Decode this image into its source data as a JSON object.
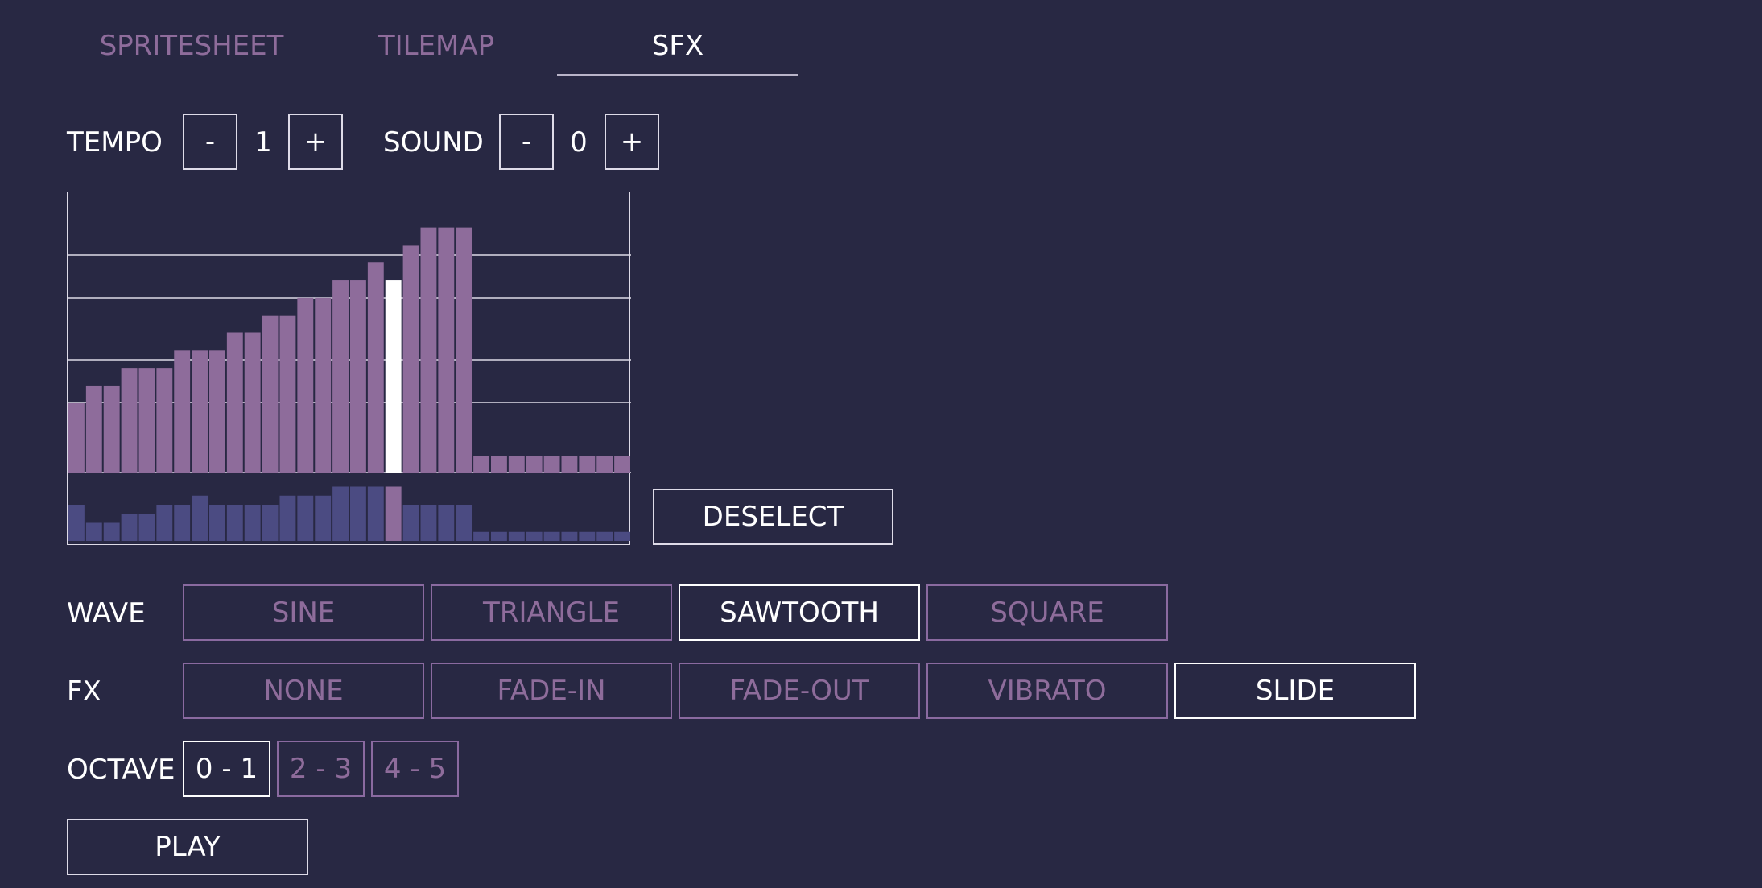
{
  "tabs": [
    {
      "label": "SPRITESHEET",
      "active": false
    },
    {
      "label": "TILEMAP",
      "active": false
    },
    {
      "label": "SFX",
      "active": true
    }
  ],
  "tempo": {
    "label": "TEMPO",
    "minus": "-",
    "value": "1",
    "plus": "+"
  },
  "sound": {
    "label": "SOUND",
    "minus": "-",
    "value": "0",
    "plus": "+"
  },
  "deselect_label": "DESELECT",
  "wave": {
    "label": "WAVE",
    "options": [
      "SINE",
      "TRIANGLE",
      "SAWTOOTH",
      "SQUARE"
    ],
    "selected": "SAWTOOTH"
  },
  "fx": {
    "label": "FX",
    "options": [
      "NONE",
      "FADE-IN",
      "FADE-OUT",
      "VIBRATO",
      "SLIDE"
    ],
    "selected": "SLIDE"
  },
  "octave": {
    "label": "OCTAVE",
    "options": [
      "0 - 1",
      "2 - 3",
      "4 - 5"
    ],
    "selected": "0 - 1"
  },
  "play_label": "PLAY",
  "colors": {
    "background": "#282843",
    "accent": "#8e6c9b",
    "pitch_bar": "#8e6c9b",
    "volume_bar": "#4b4b82",
    "selected_bar": "#ffffff",
    "selected_volume_bar": "#8e6c9b",
    "border": "#dedbe8"
  },
  "sequencer": {
    "step_count": 32,
    "selected_step": 18,
    "pitch_levels": 16,
    "volume_levels": 8,
    "pitches": [
      4,
      5,
      5,
      6,
      6,
      6,
      7,
      7,
      7,
      8,
      8,
      9,
      9,
      10,
      10,
      11,
      11,
      12,
      11,
      13,
      14,
      14,
      14,
      1,
      1,
      1,
      1,
      1,
      1,
      1,
      1,
      1
    ],
    "volumes": [
      4,
      2,
      2,
      3,
      3,
      4,
      4,
      5,
      4,
      4,
      4,
      4,
      5,
      5,
      5,
      6,
      6,
      6,
      6,
      4,
      4,
      4,
      4,
      1,
      1,
      1,
      1,
      1,
      1,
      1,
      1,
      1
    ]
  }
}
